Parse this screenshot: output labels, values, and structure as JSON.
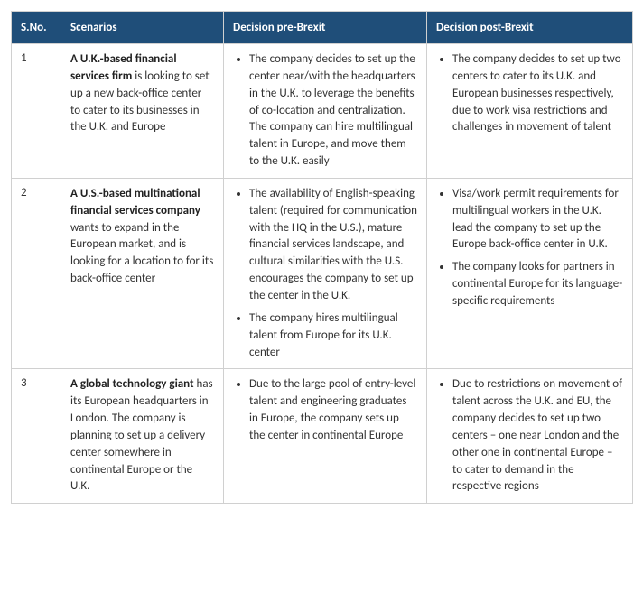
{
  "table": {
    "header_bg": "#1f4e79",
    "header_fg": "#ffffff",
    "border_color": "#d0d0d0",
    "columns": [
      {
        "label": "S.No."
      },
      {
        "label": "Scenarios"
      },
      {
        "label": "Decision pre-Brexit"
      },
      {
        "label": "Decision post-Brexit"
      }
    ],
    "rows": [
      {
        "sno": "1",
        "scenario_bold": "A U.K.-based financial services firm",
        "scenario_rest": " is looking to set up a new back-office center to cater to its businesses in the U.K. and Europe",
        "pre": [
          "The company decides to set up the center near/with the headquarters in the U.K. to leverage the benefits of co-location and centralization. The company can hire multilingual talent in Europe, and move them to the U.K. easily"
        ],
        "post": [
          "The company decides to set up two centers to cater to its U.K. and European businesses respectively, due to work visa restrictions and challenges in movement of talent"
        ]
      },
      {
        "sno": "2",
        "scenario_bold": "A U.S.-based multinational financial services company",
        "scenario_rest": " wants to expand in the European market, and is looking for a location to for its back-office center",
        "pre": [
          "The availability of English-speaking talent (required for communication with the HQ in the U.S.), mature financial services landscape, and cultural similarities with the U.S. encourages the company to set up the center in the U.K.",
          "The company hires multilingual talent from Europe for its U.K. center"
        ],
        "post": [
          "Visa/work permit requirements for multilingual workers in the U.K. lead the company to set up the Europe back-office center in U.K.",
          "The company looks for partners in continental Europe for its language-specific requirements"
        ]
      },
      {
        "sno": "3",
        "scenario_bold": "A global technology giant",
        "scenario_rest": " has its European headquarters in London. The company is planning to set up a delivery center somewhere in continental Europe or the U.K.",
        "pre": [
          "Due to the large pool of entry-level talent and engineering graduates in Europe, the company sets up the center in continental Europe"
        ],
        "post": [
          "Due to restrictions on movement of talent across the U.K. and EU, the company decides to set up two centers – one near London and the other one in continental Europe – to cater to demand in the respective regions"
        ]
      }
    ]
  }
}
